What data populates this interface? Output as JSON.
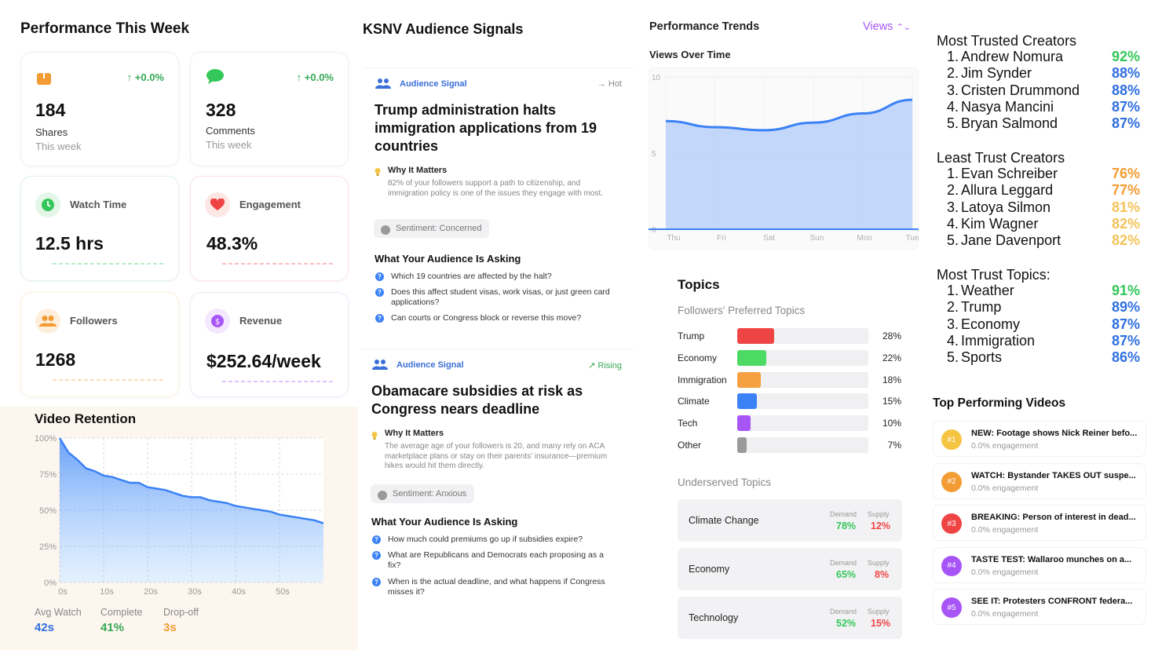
{
  "performance": {
    "title": "Performance This Week",
    "cards": [
      {
        "key": "shares",
        "value": "184",
        "label": "Shares",
        "sub": "This week",
        "delta": "+0.0%",
        "icon": "share-icon",
        "color": "#f39c34"
      },
      {
        "key": "comments",
        "value": "328",
        "label": "Comments",
        "sub": "This week",
        "delta": "+0.0%",
        "icon": "comment-icon",
        "color": "#34c759"
      },
      {
        "key": "watch",
        "value": "12.5 hrs",
        "label": "Watch Time",
        "icon": "clock-icon",
        "color": "#34c759"
      },
      {
        "key": "engagement",
        "value": "48.3%",
        "label": "Engagement",
        "icon": "heart-icon",
        "color": "#ef4444"
      },
      {
        "key": "followers",
        "value": "1268",
        "label": "Followers",
        "icon": "people-icon",
        "color": "#f39c34"
      },
      {
        "key": "revenue",
        "value": "$252.64/week",
        "label": "Revenue",
        "icon": "dollar-icon",
        "color": "#a855f7"
      }
    ]
  },
  "retention": {
    "title": "Video Retention",
    "stats": [
      {
        "label": "Avg Watch",
        "value": "42s",
        "color": "#2f6fe0"
      },
      {
        "label": "Complete",
        "value": "41%",
        "color": "#34a853"
      },
      {
        "label": "Drop-off",
        "value": "3s",
        "color": "#f39c34"
      }
    ]
  },
  "audience": {
    "title": "KSNV Audience Signals",
    "signals": [
      {
        "tag": "Audience Signal",
        "status": "Hot",
        "status_icon": "arrow-right-icon",
        "headline": "Trump administration halts immigration applications from 19 countries",
        "why_label": "Why It Matters",
        "why": "82% of your followers support a path to citizenship, and immigration policy is one of the issues they engage with most.",
        "sentiment": "Sentiment: Concerned",
        "ask_title": "What Your Audience Is Asking",
        "questions": [
          "Which 19 countries are affected by the halt?",
          "Does this affect student visas, work visas, or just green card applications?",
          "Can courts or Congress block or reverse this move?"
        ]
      },
      {
        "tag": "Audience Signal",
        "status": "Rising",
        "status_icon": "trend-up-icon",
        "headline": "Obamacare subsidies at risk as Congress nears deadline",
        "why_label": "Why It Matters",
        "why": "The average age of your followers is 20, and many rely on ACA marketplace plans or stay on their parents' insurance—premium hikes would hit them directly.",
        "sentiment": "Sentiment: Anxious",
        "ask_title": "What Your Audience Is Asking",
        "questions": [
          "How much could premiums go up if subsidies expire?",
          "What are Republicans and Democrats each proposing as a fix?",
          "When is the actual deadline, and what happens if Congress misses it?"
        ]
      }
    ]
  },
  "trends": {
    "title": "Performance Trends",
    "selector": "Views",
    "subtitle": "Views Over Time"
  },
  "topics": {
    "title": "Topics",
    "preferred_title": "Followers' Preferred Topics",
    "underserved_title": "Underserved Topics",
    "demand_label": "Demand",
    "supply_label": "Supply",
    "underserved": [
      {
        "name": "Climate Change",
        "demand": "78%",
        "supply": "12%"
      },
      {
        "name": "Economy",
        "demand": "65%",
        "supply": "8%"
      },
      {
        "name": "Technology",
        "demand": "52%",
        "supply": "15%"
      }
    ]
  },
  "trust": {
    "most_trusted_title": "Most Trusted Creators",
    "most_trusted": [
      {
        "rank": "1.",
        "name": "Andrew Nomura",
        "pct": "92%",
        "color": "#34c759"
      },
      {
        "rank": "2.",
        "name": "Jim Synder",
        "pct": "88%",
        "color": "#2f6fe0"
      },
      {
        "rank": "3.",
        "name": "Cristen Drummond",
        "pct": "88%",
        "color": "#2f6fe0"
      },
      {
        "rank": "4.",
        "name": "Nasya Mancini",
        "pct": "87%",
        "color": "#2f6fe0"
      },
      {
        "rank": "5.",
        "name": "Bryan Salmond",
        "pct": "87%",
        "color": "#2f6fe0"
      }
    ],
    "least_trust_title": "Least Trust Creators",
    "least_trust": [
      {
        "rank": "1.",
        "name": "Evan Schreiber",
        "pct": "76%",
        "color": "#f39c34"
      },
      {
        "rank": "2.",
        "name": "Allura Leggard",
        "pct": "77%",
        "color": "#f39c34"
      },
      {
        "rank": "3.",
        "name": "Latoya Silmon",
        "pct": "81%",
        "color": "#f5c35a"
      },
      {
        "rank": "4.",
        "name": "Kim Wagner",
        "pct": "82%",
        "color": "#f5c35a"
      },
      {
        "rank": "5.",
        "name": "Jane Davenport",
        "pct": "82%",
        "color": "#f5c35a"
      }
    ],
    "topics_title": "Most Trust Topics:",
    "topics": [
      {
        "rank": "1.",
        "name": "Weather",
        "pct": "91%",
        "color": "#34c759"
      },
      {
        "rank": "2.",
        "name": "Trump",
        "pct": "89%",
        "color": "#2f6fe0"
      },
      {
        "rank": "3.",
        "name": "Economy",
        "pct": "87%",
        "color": "#2f6fe0"
      },
      {
        "rank": "4.",
        "name": "Immigration",
        "pct": "87%",
        "color": "#2f6fe0"
      },
      {
        "rank": "5.",
        "name": "Sports",
        "pct": "86%",
        "color": "#2f6fe0"
      }
    ]
  },
  "videos": {
    "title": "Top Performing Videos",
    "items": [
      {
        "rank": "#1",
        "title": "NEW: Footage shows Nick Reiner befo...",
        "sub": "0.0% engagement",
        "color": "#f5c542"
      },
      {
        "rank": "#2",
        "title": "WATCH: Bystander TAKES OUT suspe...",
        "sub": "0.0% engagement",
        "color": "#f39c34"
      },
      {
        "rank": "#3",
        "title": "BREAKING: Person of interest in dead...",
        "sub": "0.0% engagement",
        "color": "#ef4444"
      },
      {
        "rank": "#4",
        "title": "TASTE TEST: Wallaroo munches on a...",
        "sub": "0.0% engagement",
        "color": "#a855f7"
      },
      {
        "rank": "#5",
        "title": "SEE IT: Protesters CONFRONT federa...",
        "sub": "0.0% engagement",
        "color": "#a855f7"
      }
    ]
  },
  "chart_data": [
    {
      "type": "area",
      "title": "Video Retention",
      "x": [
        0,
        2,
        4,
        6,
        8,
        10,
        12,
        14,
        16,
        18,
        20,
        22,
        24,
        26,
        28,
        30,
        32,
        34,
        36,
        38,
        40,
        42,
        44,
        46,
        48,
        50,
        52,
        54,
        56,
        58,
        60
      ],
      "x_ticks": [
        "0s",
        "10s",
        "20s",
        "30s",
        "40s",
        "50s"
      ],
      "x_tick_values": [
        0,
        10,
        20,
        30,
        40,
        50
      ],
      "y": [
        100,
        90,
        85,
        79,
        77,
        74,
        73,
        71,
        69,
        69,
        66,
        65,
        64,
        62,
        60,
        59,
        59,
        57,
        56,
        55,
        53,
        52,
        51,
        50,
        49,
        47,
        46,
        45,
        44,
        43,
        41
      ],
      "y_ticks": [
        "0%",
        "25%",
        "50%",
        "75%",
        "100%"
      ],
      "y_tick_values": [
        0,
        25,
        50,
        75,
        100
      ],
      "xlim": [
        0,
        60
      ],
      "ylim": [
        0,
        100
      ],
      "grid": true,
      "color": "#3b82f6"
    },
    {
      "type": "area",
      "title": "Views Over Time",
      "categories": [
        "Thu",
        "Fri",
        "Sat",
        "Sun",
        "Mon",
        "Tue"
      ],
      "values": [
        7.1,
        6.7,
        6.5,
        7.0,
        7.6,
        8.5
      ],
      "y_ticks": [
        "0",
        "5",
        "10"
      ],
      "y_tick_values": [
        0,
        5,
        10
      ],
      "ylim": [
        0,
        10
      ],
      "grid": true,
      "color": "#3b82f6"
    },
    {
      "type": "bar",
      "title": "Followers' Preferred Topics",
      "categories": [
        "Trump",
        "Economy",
        "Immigration",
        "Climate",
        "Tech",
        "Other"
      ],
      "values": [
        28,
        22,
        18,
        15,
        10,
        7
      ],
      "labels": [
        "28%",
        "22%",
        "18%",
        "15%",
        "10%",
        "7%"
      ],
      "colors": [
        "#ef4444",
        "#4cd964",
        "#f5a142",
        "#3b82f6",
        "#a855f7",
        "#9a9a9a"
      ],
      "xlim": [
        0,
        100
      ]
    }
  ]
}
